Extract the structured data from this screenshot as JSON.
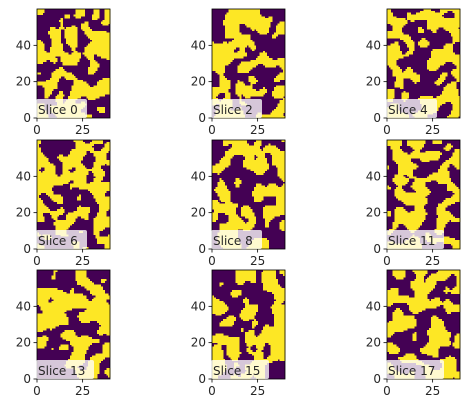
{
  "chart_data": [
    {
      "type": "heatmap",
      "title": "",
      "annotation": "Slice 0",
      "xlim": [
        0,
        40
      ],
      "ylim": [
        0,
        60
      ],
      "xticks": [
        "0",
        "25"
      ],
      "yticks": [
        "0",
        "20",
        "40"
      ],
      "colors": [
        "#440154",
        "#fde725"
      ]
    },
    {
      "type": "heatmap",
      "title": "",
      "annotation": "Slice 2",
      "xlim": [
        0,
        40
      ],
      "ylim": [
        0,
        60
      ],
      "xticks": [
        "0",
        "25"
      ],
      "yticks": [
        "0",
        "20",
        "40"
      ],
      "colors": [
        "#440154",
        "#fde725"
      ]
    },
    {
      "type": "heatmap",
      "title": "",
      "annotation": "Slice 4",
      "xlim": [
        0,
        40
      ],
      "ylim": [
        0,
        60
      ],
      "xticks": [
        "0",
        "25"
      ],
      "yticks": [
        "0",
        "20",
        "40"
      ],
      "colors": [
        "#440154",
        "#fde725"
      ]
    },
    {
      "type": "heatmap",
      "title": "",
      "annotation": "Slice 6",
      "xlim": [
        0,
        40
      ],
      "ylim": [
        0,
        60
      ],
      "xticks": [
        "0",
        "25"
      ],
      "yticks": [
        "0",
        "20",
        "40"
      ],
      "colors": [
        "#440154",
        "#fde725"
      ]
    },
    {
      "type": "heatmap",
      "title": "",
      "annotation": "Slice 8",
      "xlim": [
        0,
        40
      ],
      "ylim": [
        0,
        60
      ],
      "xticks": [
        "0",
        "25"
      ],
      "yticks": [
        "0",
        "20",
        "40"
      ],
      "colors": [
        "#440154",
        "#fde725"
      ]
    },
    {
      "type": "heatmap",
      "title": "",
      "annotation": "Slice 11",
      "xlim": [
        0,
        40
      ],
      "ylim": [
        0,
        60
      ],
      "xticks": [
        "0",
        "25"
      ],
      "yticks": [
        "0",
        "20",
        "40"
      ],
      "colors": [
        "#440154",
        "#fde725"
      ]
    },
    {
      "type": "heatmap",
      "title": "",
      "annotation": "Slice 13",
      "xlim": [
        0,
        40
      ],
      "ylim": [
        0,
        60
      ],
      "xticks": [
        "0",
        "25"
      ],
      "yticks": [
        "0",
        "20",
        "40"
      ],
      "colors": [
        "#440154",
        "#fde725"
      ]
    },
    {
      "type": "heatmap",
      "title": "",
      "annotation": "Slice 15",
      "xlim": [
        0,
        40
      ],
      "ylim": [
        0,
        60
      ],
      "xticks": [
        "0",
        "25"
      ],
      "yticks": [
        "0",
        "20",
        "40"
      ],
      "colors": [
        "#440154",
        "#fde725"
      ]
    },
    {
      "type": "heatmap",
      "title": "",
      "annotation": "Slice 17",
      "xlim": [
        0,
        40
      ],
      "ylim": [
        0,
        60
      ],
      "xticks": [
        "0",
        "25"
      ],
      "yticks": [
        "0",
        "20",
        "40"
      ],
      "colors": [
        "#440154",
        "#fde725"
      ]
    }
  ]
}
